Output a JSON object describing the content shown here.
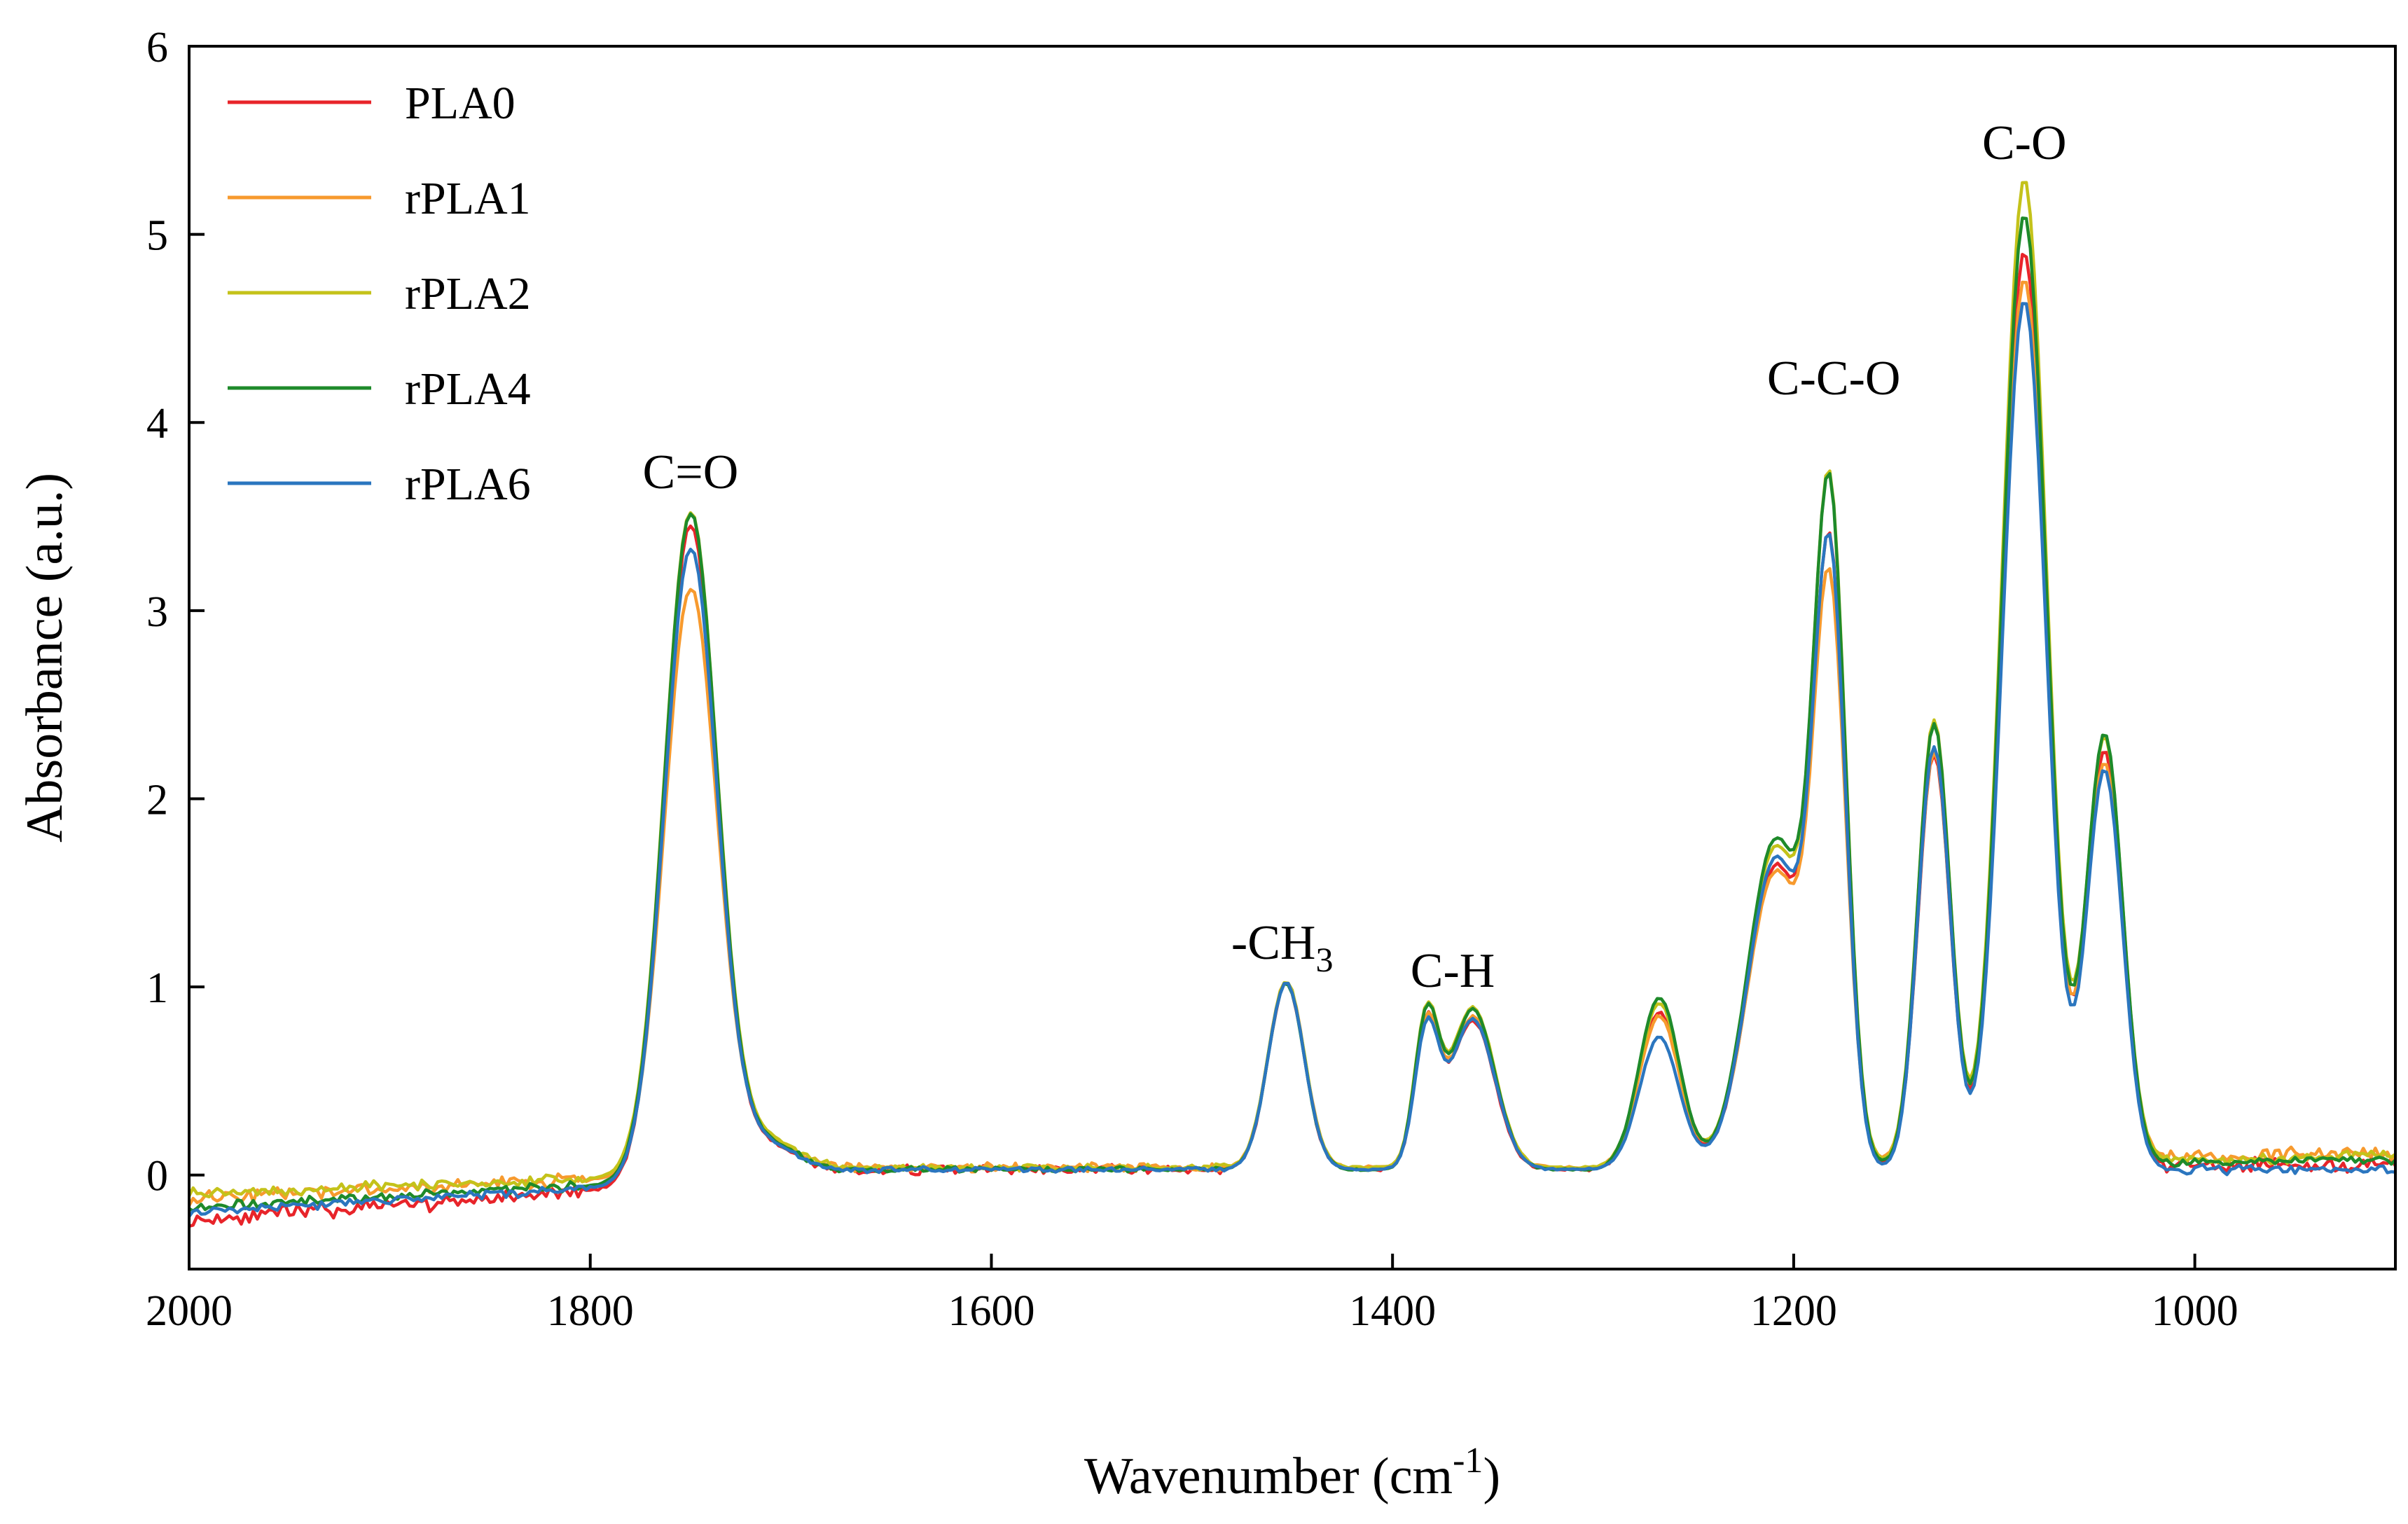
{
  "chart_data": {
    "type": "line",
    "title": "",
    "xlabel": "Wavenumber (cm",
    "xlabel_sup": "-1",
    "xlabel_end": ")",
    "ylabel": "Absorbance (a.u.)",
    "xlim": [
      2000,
      900
    ],
    "ylim": [
      -0.5,
      6
    ],
    "x_reversed": true,
    "x_ticks": [
      2000,
      1800,
      1600,
      1400,
      1200,
      1000
    ],
    "y_ticks": [
      0,
      1,
      2,
      3,
      4,
      5,
      6
    ],
    "legend_position": "top-left",
    "annotations": [
      {
        "label": "C=O",
        "x": 1750,
        "y": 3.65
      },
      {
        "label": "-CH",
        "sub": "3",
        "x": 1455,
        "y": 1.15
      },
      {
        "label": "C-H",
        "x": 1370,
        "y": 1.0
      },
      {
        "label": "C-C-O",
        "x": 1180,
        "y": 4.15
      },
      {
        "label": "C-O",
        "x": 1085,
        "y": 5.4
      }
    ],
    "peaks": {
      "wavenumber": [
        1750,
        1453,
        1383,
        1360,
        1267,
        1209,
        1182,
        1130,
        1085,
        1045
      ],
      "width": [
        13,
        9,
        6,
        11,
        10,
        14,
        8,
        8,
        11,
        9
      ]
    },
    "series": [
      {
        "name": "PLA0",
        "color": "#e8242a",
        "heights": [
          3.48,
          0.99,
          0.74,
          0.79,
          0.83,
          1.6,
          3.12,
          2.2,
          4.86,
          2.2
        ],
        "baseline": [
          -0.24,
          0.03,
          0.06
        ],
        "noise": 0.038,
        "seed": 11
      },
      {
        "name": "rPLA1",
        "color": "#f79a2e",
        "heights": [
          3.1,
          0.99,
          0.73,
          0.8,
          0.8,
          1.55,
          2.92,
          2.18,
          4.68,
          2.1
        ],
        "baseline": [
          -0.12,
          0.04,
          0.12
        ],
        "noise": 0.034,
        "seed": 23
      },
      {
        "name": "rPLA2",
        "color": "#c4c21a",
        "heights": [
          3.5,
          0.99,
          0.78,
          0.85,
          0.87,
          1.69,
          3.42,
          2.35,
          5.22,
          2.25
        ],
        "baseline": [
          -0.1,
          0.04,
          0.1
        ],
        "noise": 0.026,
        "seed": 37
      },
      {
        "name": "rPLA4",
        "color": "#1e8a2a",
        "heights": [
          3.52,
          0.99,
          0.78,
          0.85,
          0.91,
          1.74,
          3.41,
          2.35,
          5.05,
          2.28
        ],
        "baseline": [
          -0.17,
          0.03,
          0.08
        ],
        "noise": 0.024,
        "seed": 53
      },
      {
        "name": "rPLA6",
        "color": "#2b76bf",
        "heights": [
          3.34,
          0.99,
          0.71,
          0.8,
          0.7,
          1.65,
          3.12,
          2.25,
          4.62,
          2.12
        ],
        "baseline": [
          -0.2,
          0.03,
          0.03
        ],
        "noise": 0.022,
        "seed": 71
      }
    ]
  }
}
